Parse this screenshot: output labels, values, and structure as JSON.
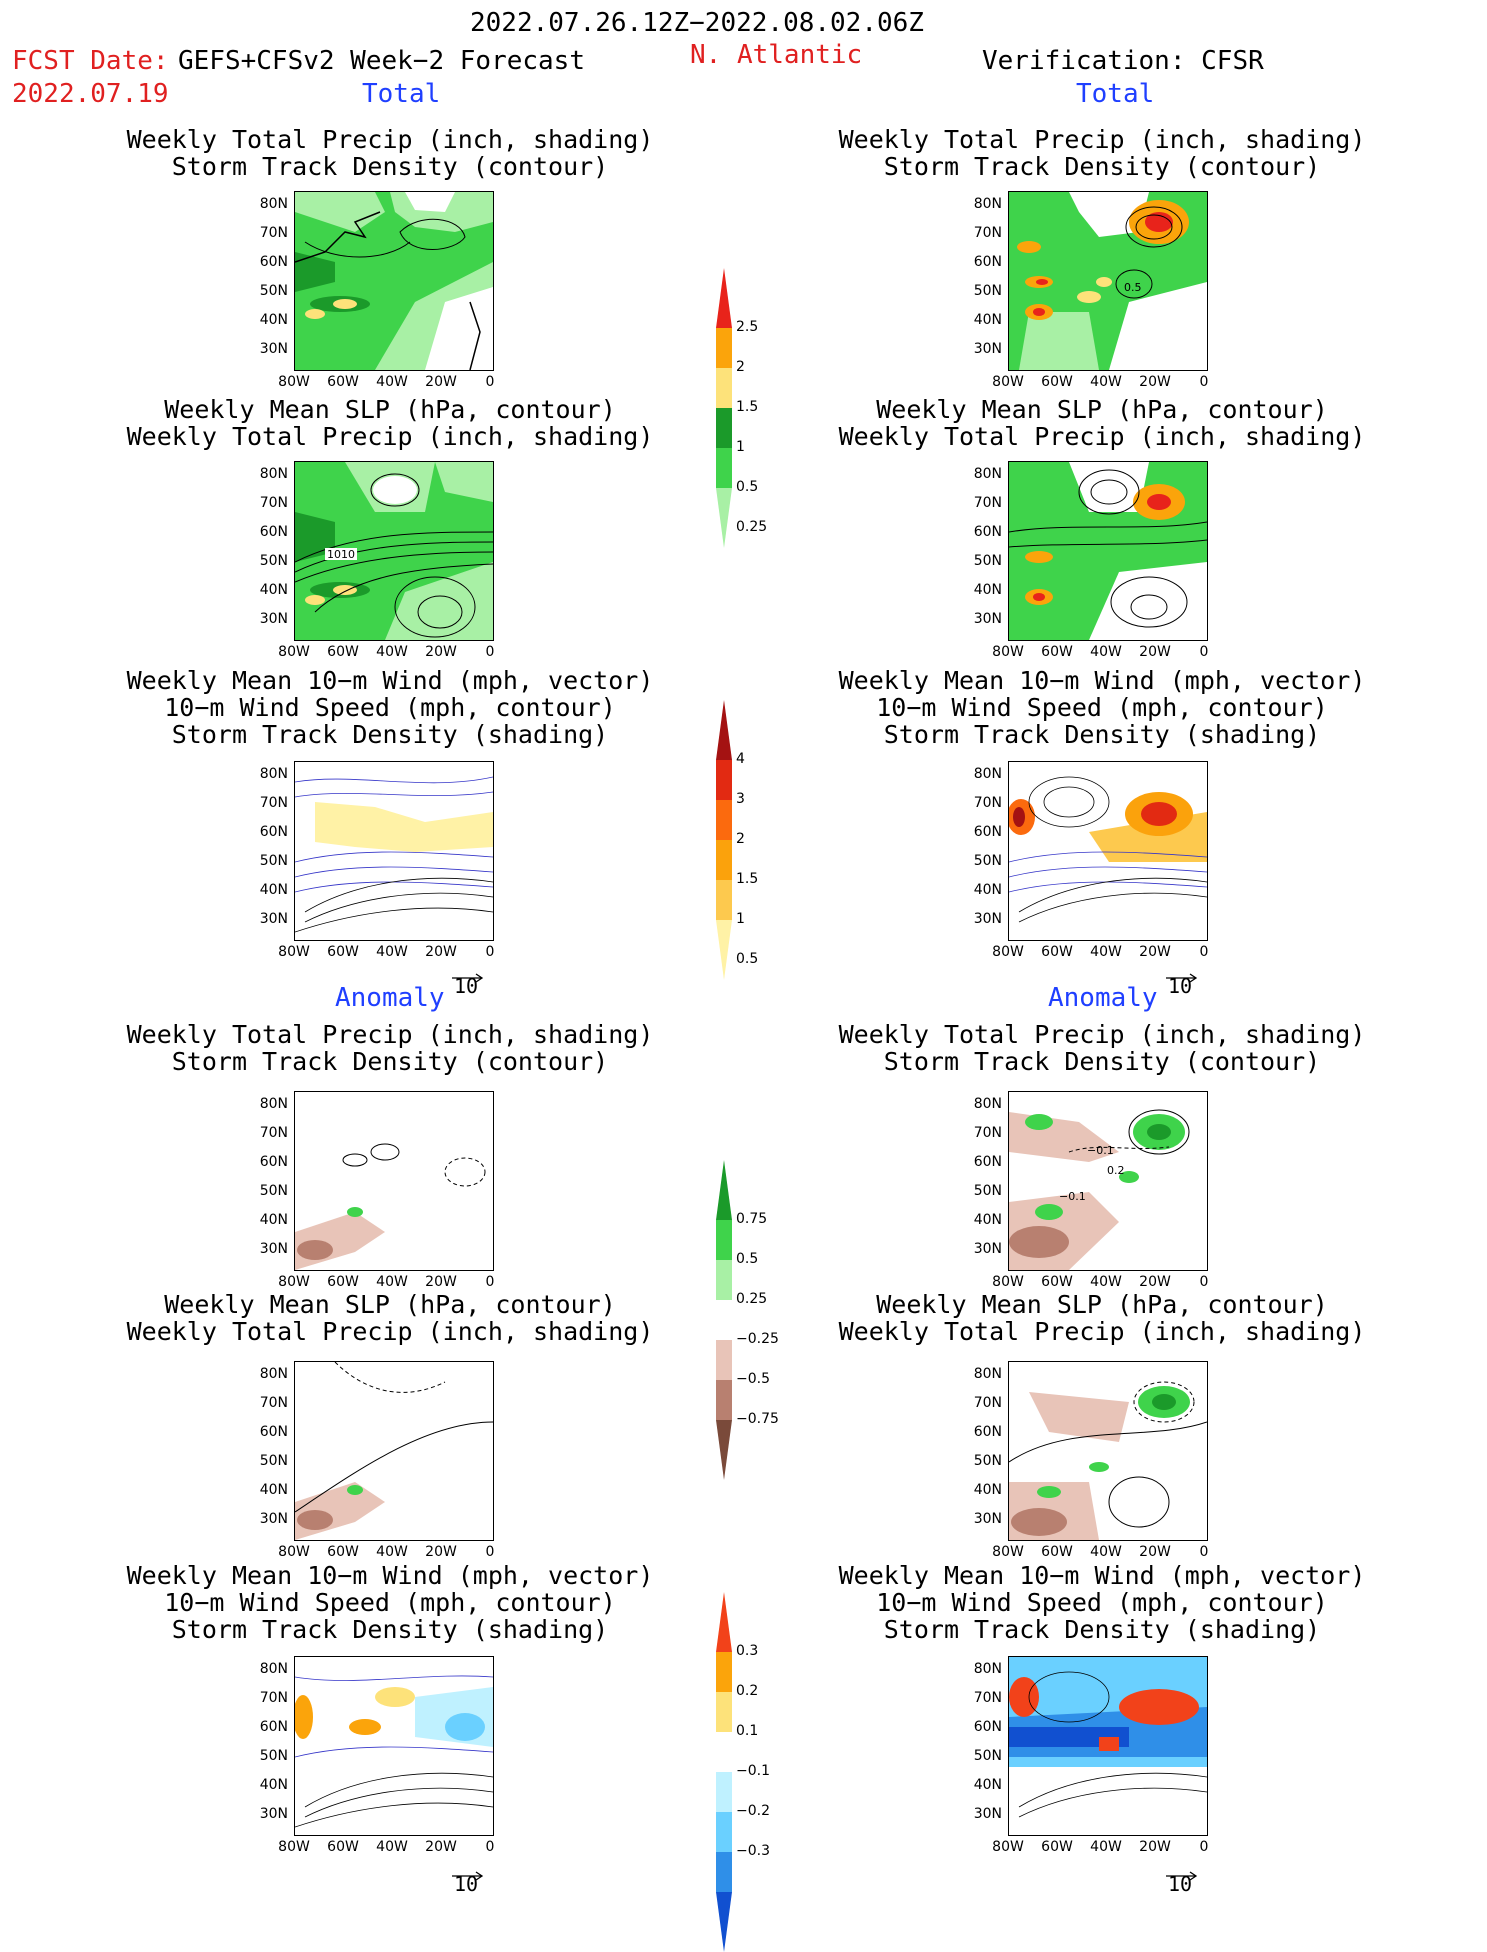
{
  "header": {
    "date_range": "2022.07.26.12Z−2022.08.02.06Z",
    "fcst_date_label": "FCST Date:",
    "fcst_model": "GEFS+CFSv2 Week−2 Forecast",
    "fcst_date": "2022.07.19",
    "region": "N. Atlantic",
    "verification": "Verification: CFSR"
  },
  "sections": {
    "total": "Total",
    "anomaly": "Anomaly"
  },
  "titles": {
    "precip_track": [
      "Weekly Total Precip (inch, shading)",
      "Storm Track Density (contour)"
    ],
    "slp_precip": [
      "Weekly Mean SLP (hPa, contour)",
      "Weekly Total Precip (inch, shading)"
    ],
    "wind_track": [
      "Weekly Mean 10−m Wind (mph, vector)",
      "10−m Wind Speed (mph, contour)",
      "Storm Track Density (shading)"
    ]
  },
  "axes": {
    "y_ticks": [
      "80N",
      "70N",
      "60N",
      "50N",
      "40N",
      "30N"
    ],
    "x_ticks": [
      "80W",
      "60W",
      "40W",
      "20W",
      "0"
    ]
  },
  "contour_labels": {
    "slp_fcst": "1010",
    "track_verif": "0.5",
    "anom_track_a": "−0.1",
    "anom_track_b": "−0.1",
    "anom_track_c": "0.2"
  },
  "vector_reference": "10",
  "colorbars": {
    "total_precip": {
      "labels": [
        "2.5",
        "2",
        "1.5",
        "1",
        "0.5",
        "0.25"
      ],
      "colors": [
        "#e8231b",
        "#fba40b",
        "#fde27a",
        "#1b9a2a",
        "#3fd34b",
        "#a8f0a5"
      ]
    },
    "total_track": {
      "labels": [
        "4",
        "3",
        "2",
        "1.5",
        "1",
        "0.5"
      ],
      "colors": [
        "#a41212",
        "#e22a12",
        "#fb6a0e",
        "#fba20c",
        "#fdc94e",
        "#fff2a6"
      ]
    },
    "anom_precip": {
      "labels": [
        "0.75",
        "0.5",
        "0.25",
        "−0.25",
        "−0.5",
        "−0.75"
      ],
      "colors": [
        "#1b9a2a",
        "#3fd34b",
        "#a8f0a5",
        "#ffffff",
        "#e8c4b8",
        "#b88070",
        "#7a4a3a"
      ]
    },
    "anom_track": {
      "labels": [
        "0.3",
        "0.2",
        "0.1",
        "−0.1",
        "−0.2",
        "−0.3"
      ],
      "colors": [
        "#f2421a",
        "#fba40b",
        "#fde27a",
        "#ffffff",
        "#bff1ff",
        "#6ad0ff",
        "#2f8fe8",
        "#1150d0"
      ]
    }
  }
}
